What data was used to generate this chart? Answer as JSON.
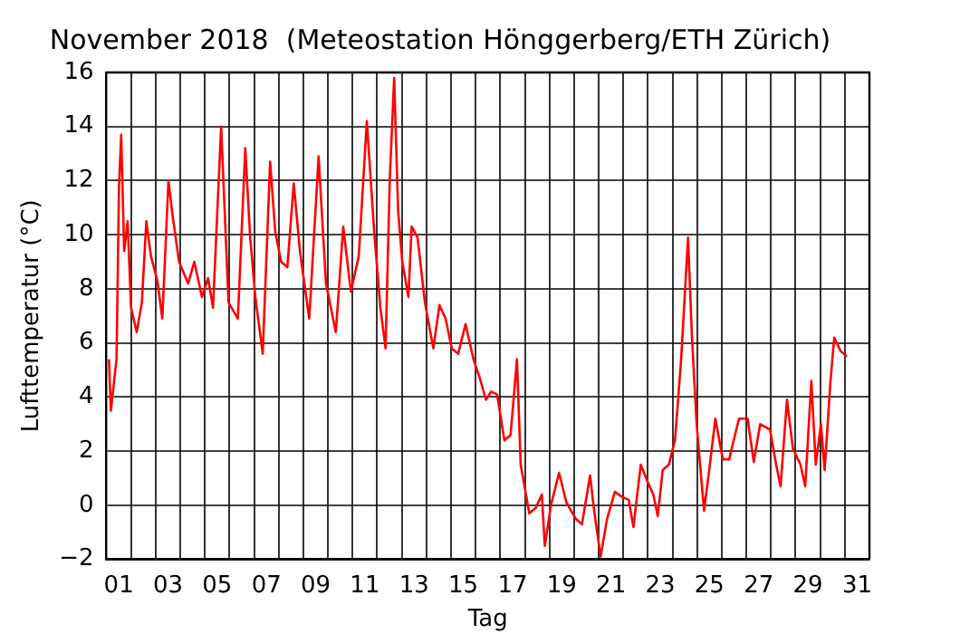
{
  "chart_data": {
    "type": "line",
    "title": "November 2018  (Meteostation Hönggerberg/ETH Zürich)",
    "xlabel": "Tag",
    "ylabel": "Lufttemperatur (°C)",
    "x": [
      0.1,
      0.18,
      0.41,
      0.51,
      0.6,
      0.72,
      0.86,
      1.0,
      1.23,
      1.44,
      1.62,
      1.81,
      2.07,
      2.27,
      2.52,
      2.69,
      2.95,
      3.32,
      3.57,
      3.88,
      4.13,
      4.33,
      4.66,
      4.96,
      5.34,
      5.64,
      5.84,
      6.05,
      6.35,
      6.65,
      6.86,
      7.1,
      7.35,
      7.61,
      7.86,
      8.24,
      8.62,
      8.92,
      9.32,
      9.62,
      9.93,
      10.25,
      10.58,
      10.88,
      11.13,
      11.34,
      11.51,
      11.69,
      11.85,
      12.02,
      12.27,
      12.4,
      12.64,
      12.94,
      13.28,
      13.53,
      13.78,
      14.03,
      14.29,
      14.59,
      14.91,
      15.17,
      15.42,
      15.63,
      15.87,
      16.17,
      16.42,
      16.68,
      16.83,
      17.18,
      17.44,
      17.69,
      17.81,
      18.06,
      18.39,
      18.69,
      19.07,
      19.32,
      19.65,
      19.83,
      20.08,
      20.34,
      20.66,
      20.96,
      21.22,
      21.41,
      21.71,
      21.97,
      22.22,
      22.4,
      22.6,
      22.85,
      23.1,
      23.35,
      23.63,
      23.79,
      23.98,
      24.28,
      24.49,
      24.74,
      25.04,
      25.3,
      25.7,
      26.05,
      26.3,
      26.56,
      26.96,
      27.21,
      27.39,
      27.65,
      27.89,
      28.2,
      28.39,
      28.64,
      28.82,
      29.03,
      29.18,
      29.41,
      29.57,
      29.83,
      30.08
    ],
    "series": [
      {
        "color": "#ff0000",
        "values": [
          5.4,
          3.5,
          5.4,
          11.8,
          13.7,
          9.4,
          10.5,
          7.3,
          6.4,
          7.5,
          10.5,
          9.2,
          8.3,
          6.9,
          12.0,
          10.7,
          9.0,
          8.2,
          9.0,
          7.7,
          8.4,
          7.3,
          14.0,
          7.5,
          6.9,
          13.2,
          9.9,
          7.7,
          5.6,
          12.7,
          10.1,
          9.0,
          8.8,
          11.9,
          9.4,
          6.9,
          12.9,
          8.2,
          6.4,
          10.3,
          7.9,
          9.2,
          14.2,
          10.1,
          7.3,
          5.8,
          12.0,
          15.8,
          10.9,
          9.0,
          7.7,
          10.3,
          9.9,
          7.5,
          5.8,
          7.4,
          6.9,
          5.8,
          5.6,
          6.7,
          5.4,
          4.7,
          3.9,
          4.2,
          4.1,
          2.4,
          2.6,
          5.4,
          1.5,
          -0.3,
          -0.1,
          0.4,
          -1.5,
          0.0,
          1.2,
          0.1,
          -0.5,
          -0.7,
          1.1,
          -0.3,
          -1.9,
          -0.5,
          0.5,
          0.3,
          0.2,
          -0.8,
          1.5,
          0.9,
          0.4,
          -0.4,
          1.3,
          1.5,
          2.4,
          5.4,
          9.9,
          6.2,
          3.0,
          -0.2,
          1.3,
          3.2,
          1.7,
          1.7,
          3.2,
          3.2,
          1.6,
          3.0,
          2.8,
          1.5,
          0.7,
          3.9,
          2.1,
          1.5,
          0.7,
          4.6,
          1.5,
          3.0,
          1.3,
          4.5,
          6.2,
          5.7,
          5.5
        ]
      }
    ],
    "xlim": [
      0,
      31
    ],
    "xticks": [
      {
        "value": 0.5,
        "label": "01"
      },
      {
        "value": 1,
        "label": null
      },
      {
        "value": 2,
        "label": null
      },
      {
        "value": 2.5,
        "label": "03"
      },
      {
        "value": 3,
        "label": null
      },
      {
        "value": 4,
        "label": null
      },
      {
        "value": 4.5,
        "label": "05"
      },
      {
        "value": 5,
        "label": null
      },
      {
        "value": 6,
        "label": null
      },
      {
        "value": 6.5,
        "label": "07"
      },
      {
        "value": 7,
        "label": null
      },
      {
        "value": 8,
        "label": null
      },
      {
        "value": 8.5,
        "label": "09"
      },
      {
        "value": 9,
        "label": null
      },
      {
        "value": 10,
        "label": null
      },
      {
        "value": 10.5,
        "label": "11"
      },
      {
        "value": 11,
        "label": null
      },
      {
        "value": 12,
        "label": null
      },
      {
        "value": 12.5,
        "label": "13"
      },
      {
        "value": 13,
        "label": null
      },
      {
        "value": 14,
        "label": null
      },
      {
        "value": 14.5,
        "label": "15"
      },
      {
        "value": 15,
        "label": null
      },
      {
        "value": 16,
        "label": null
      },
      {
        "value": 16.5,
        "label": "17"
      },
      {
        "value": 17,
        "label": null
      },
      {
        "value": 18,
        "label": null
      },
      {
        "value": 18.5,
        "label": "19"
      },
      {
        "value": 19,
        "label": null
      },
      {
        "value": 20,
        "label": null
      },
      {
        "value": 20.5,
        "label": "21"
      },
      {
        "value": 21,
        "label": null
      },
      {
        "value": 22,
        "label": null
      },
      {
        "value": 22.5,
        "label": "23"
      },
      {
        "value": 23,
        "label": null
      },
      {
        "value": 24,
        "label": null
      },
      {
        "value": 24.5,
        "label": "25"
      },
      {
        "value": 25,
        "label": null
      },
      {
        "value": 26,
        "label": null
      },
      {
        "value": 26.5,
        "label": "27"
      },
      {
        "value": 27,
        "label": null
      },
      {
        "value": 28,
        "label": null
      },
      {
        "value": 28.5,
        "label": "29"
      },
      {
        "value": 29,
        "label": null
      },
      {
        "value": 30,
        "label": null
      },
      {
        "value": 30.5,
        "label": "31"
      }
    ],
    "ylim": [
      -2,
      16
    ],
    "yticks": [
      {
        "value": -2,
        "label": "−2"
      },
      0,
      2,
      4,
      6,
      8,
      10,
      12,
      14,
      16
    ],
    "grid": true,
    "legend": false,
    "marker": "none",
    "line_style": "solid"
  }
}
